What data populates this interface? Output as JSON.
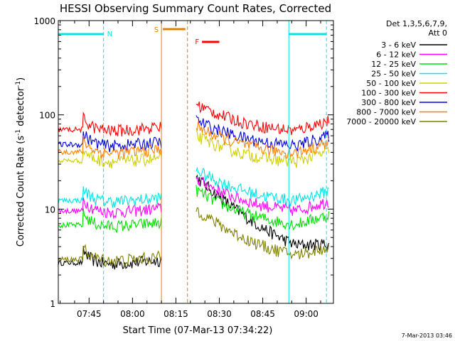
{
  "chart_data": {
    "type": "line",
    "title": "HESSI Observing Summary Count Rates, Corrected",
    "xlabel": "Start Time (07-Mar-13 07:34:22)",
    "ylabel_main": "Corrected Count Rate (s",
    "ylabel_sup1": "-1",
    "ylabel_mid": " detector",
    "ylabel_sup2": "-1",
    "ylabel_end": ")",
    "yscale": "log",
    "ylim": [
      1,
      1000
    ],
    "xlim": [
      "07:34",
      "09:09"
    ],
    "x_ticks": [
      "07:45",
      "08:00",
      "08:15",
      "08:30",
      "08:45",
      "09:00"
    ],
    "y_ticks": [
      "1",
      "10",
      "100",
      "1000"
    ],
    "legend_title": [
      "Det 1,3,5,6,7,9,",
      "Att 0"
    ],
    "legend_position": "right",
    "footer": "7-Mar-2013 03:46",
    "markers": {
      "N": {
        "label": "N",
        "spans": [
          [
            "07:34",
            "07:50"
          ],
          [
            "08:54",
            "09:07"
          ]
        ],
        "color": "#00e5e5"
      },
      "S": {
        "label": "S",
        "start": "08:10",
        "end": "08:19",
        "color": "#e08000"
      },
      "F": {
        "label": "F",
        "start": "08:24",
        "end": "08:30",
        "color": "#ff0000"
      }
    },
    "series": [
      {
        "name": "3 - 6 keV",
        "color": "#000000",
        "base": 2.4,
        "flare": 22
      },
      {
        "name": "6 - 12 keV",
        "color": "#ff00ff",
        "base": 8.5,
        "flare": 21
      },
      {
        "name": "12 - 25 keV",
        "color": "#00e000",
        "base": 6.0,
        "flare": 16
      },
      {
        "name": "25 - 50 keV",
        "color": "#00e5e5",
        "base": 11,
        "flare": 26
      },
      {
        "name": "50 - 100 keV",
        "color": "#d0d000",
        "base": 29,
        "flare": 60
      },
      {
        "name": "100 - 300 keV",
        "color": "#ff0000",
        "base": 62,
        "flare": 130
      },
      {
        "name": "300 - 800 keV",
        "color": "#0000e0",
        "base": 43,
        "flare": 88
      },
      {
        "name": "800 - 7000 keV",
        "color": "#ff8000",
        "base": 36,
        "flare": 75
      },
      {
        "name": "7000 - 20000 keV",
        "color": "#808000",
        "base": 2.6,
        "flare": 10
      }
    ]
  }
}
